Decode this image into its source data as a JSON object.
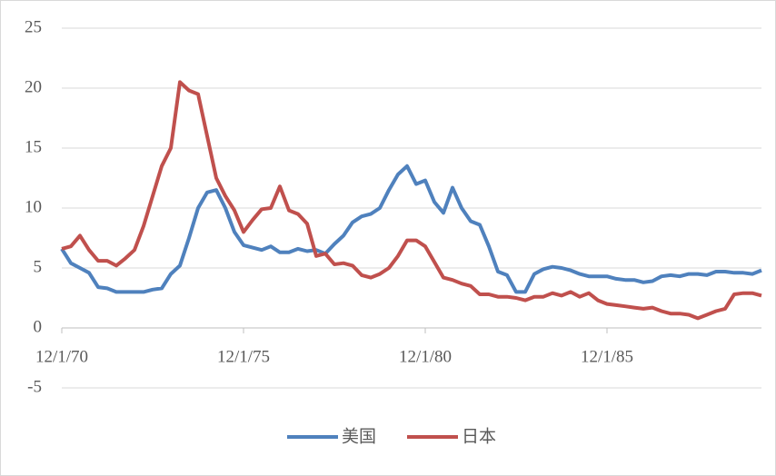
{
  "chart_data": {
    "type": "line",
    "x": [
      "12/1/70",
      "3/1/71",
      "6/1/71",
      "9/1/71",
      "12/1/71",
      "3/1/72",
      "6/1/72",
      "9/1/72",
      "12/1/72",
      "3/1/73",
      "6/1/73",
      "9/1/73",
      "12/1/73",
      "3/1/74",
      "6/1/74",
      "9/1/74",
      "12/1/74",
      "3/1/75",
      "6/1/75",
      "9/1/75",
      "12/1/75",
      "3/1/76",
      "6/1/76",
      "9/1/76",
      "12/1/76",
      "3/1/77",
      "6/1/77",
      "9/1/77",
      "12/1/77",
      "3/1/78",
      "6/1/78",
      "9/1/78",
      "12/1/78",
      "3/1/79",
      "6/1/79",
      "9/1/79",
      "12/1/79",
      "3/1/80",
      "6/1/80",
      "9/1/80",
      "12/1/80",
      "3/1/81",
      "6/1/81",
      "9/1/81",
      "12/1/81",
      "3/1/82",
      "6/1/82",
      "9/1/82",
      "12/1/82",
      "3/1/83",
      "6/1/83",
      "9/1/83",
      "12/1/83",
      "3/1/84",
      "6/1/84",
      "9/1/84",
      "12/1/84",
      "3/1/85",
      "6/1/85",
      "9/1/85",
      "12/1/85",
      "3/1/86",
      "6/1/86",
      "9/1/86",
      "12/1/86",
      "3/1/87",
      "6/1/87",
      "9/1/87",
      "12/1/87",
      "3/1/88",
      "6/1/88",
      "9/1/88",
      "12/1/88",
      "3/1/89",
      "6/1/89",
      "9/1/89",
      "12/1/89",
      "3/1/90"
    ],
    "series": [
      {
        "name": "美国",
        "color": "#4f81bd",
        "values": [
          6.6,
          5.4,
          5.0,
          4.6,
          3.4,
          3.3,
          3.0,
          3.0,
          3.0,
          3.0,
          3.2,
          3.3,
          4.5,
          5.2,
          7.5,
          10.0,
          11.3,
          11.5,
          10.0,
          8.0,
          6.9,
          6.7,
          6.5,
          6.8,
          6.3,
          6.3,
          6.6,
          6.4,
          6.5,
          6.2,
          7.0,
          7.7,
          8.8,
          9.3,
          9.5,
          10.0,
          11.5,
          12.8,
          13.5,
          12.0,
          12.3,
          10.5,
          9.6,
          11.7,
          10.0,
          8.9,
          8.6,
          6.8,
          4.7,
          4.4,
          3.0,
          3.0,
          4.5,
          4.9,
          5.1,
          5.0,
          4.8,
          4.5,
          4.3,
          4.3,
          4.3,
          4.1,
          4.0,
          4.0,
          3.8,
          3.9,
          4.3,
          4.4,
          4.3,
          4.5,
          4.5,
          4.4,
          4.7,
          4.7,
          4.6,
          4.6,
          4.5,
          4.8
        ]
      },
      {
        "name": "日本",
        "color": "#c0504d",
        "values": [
          6.6,
          6.8,
          7.7,
          6.5,
          5.6,
          5.6,
          5.2,
          5.8,
          6.5,
          8.5,
          11.0,
          13.5,
          15.0,
          20.5,
          19.8,
          19.5,
          16.0,
          12.5,
          11.0,
          9.8,
          8.0,
          9.0,
          9.9,
          10.0,
          11.8,
          9.8,
          9.5,
          8.7,
          6.0,
          6.2,
          5.3,
          5.4,
          5.2,
          4.4,
          4.2,
          4.5,
          5.0,
          6.0,
          7.3,
          7.3,
          6.8,
          5.5,
          4.2,
          4.0,
          3.7,
          3.5,
          2.8,
          2.8,
          2.6,
          2.6,
          2.5,
          2.3,
          2.6,
          2.6,
          2.9,
          2.7,
          3.0,
          2.6,
          2.9,
          2.3,
          2.0,
          1.9,
          1.8,
          1.7,
          1.6,
          1.7,
          1.4,
          1.2,
          1.2,
          1.1,
          0.8,
          1.1,
          1.4,
          1.6,
          2.8,
          2.9,
          2.9,
          2.7
        ]
      }
    ],
    "xticks": [
      "12/1/70",
      "12/1/75",
      "12/1/80",
      "12/1/85"
    ],
    "ylim": [
      -5,
      25
    ],
    "yticks": [
      -5,
      0,
      5,
      10,
      15,
      20,
      25
    ],
    "grid": true,
    "legend": "bottom"
  }
}
